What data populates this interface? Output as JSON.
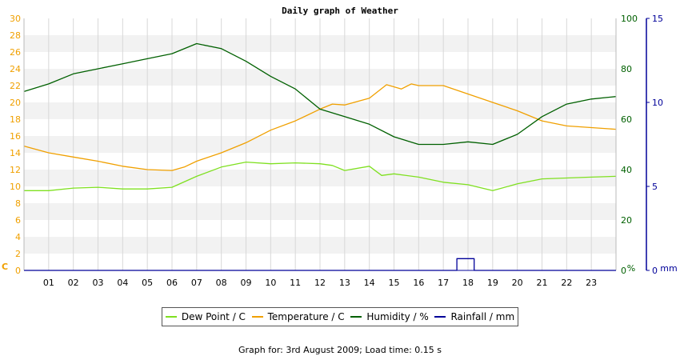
{
  "footer_text": "Graph for: 3rd August 2009; Load time: 0.15 s",
  "chart_data": {
    "type": "line",
    "title": "Daily graph of Weather",
    "x_ticks": [
      "01",
      "02",
      "03",
      "04",
      "05",
      "06",
      "07",
      "08",
      "09",
      "10",
      "11",
      "12",
      "13",
      "14",
      "15",
      "16",
      "17",
      "18",
      "19",
      "20",
      "21",
      "22",
      "23"
    ],
    "x_range_hours": [
      0,
      24
    ],
    "axes": {
      "left": {
        "unit_label": "C",
        "range": [
          0,
          30
        ],
        "ticks": [
          0,
          2,
          4,
          6,
          8,
          10,
          12,
          14,
          16,
          18,
          20,
          22,
          24,
          26,
          28,
          30
        ],
        "color": "#f0a000"
      },
      "right1": {
        "unit_label": "%",
        "range": [
          0,
          100
        ],
        "ticks": [
          0,
          20,
          40,
          60,
          80,
          100
        ],
        "color": "#006000"
      },
      "right2": {
        "unit_label": "mm",
        "range": [
          0,
          15
        ],
        "ticks": [
          0,
          5,
          10,
          15
        ],
        "color": "#000099"
      }
    },
    "grid": true,
    "legend_position": "bottom",
    "series": [
      {
        "name": "Dew Point / C",
        "axis": "left",
        "color": "#7fe020",
        "points": [
          [
            0,
            9.5
          ],
          [
            1,
            9.5
          ],
          [
            2,
            9.8
          ],
          [
            3,
            9.9
          ],
          [
            4,
            9.7
          ],
          [
            5,
            9.7
          ],
          [
            6,
            9.9
          ],
          [
            7,
            11.2
          ],
          [
            8,
            12.3
          ],
          [
            9,
            12.9
          ],
          [
            10,
            12.7
          ],
          [
            11,
            12.8
          ],
          [
            12,
            12.7
          ],
          [
            12.5,
            12.5
          ],
          [
            13,
            11.9
          ],
          [
            14,
            12.4
          ],
          [
            14.5,
            11.3
          ],
          [
            15,
            11.5
          ],
          [
            16,
            11.1
          ],
          [
            17,
            10.5
          ],
          [
            18,
            10.2
          ],
          [
            19,
            9.5
          ],
          [
            20,
            10.3
          ],
          [
            21,
            10.9
          ],
          [
            22,
            11.0
          ],
          [
            23,
            11.1
          ],
          [
            24,
            11.2
          ]
        ]
      },
      {
        "name": "Temperature / C",
        "axis": "left",
        "color": "#f0a000",
        "points": [
          [
            0,
            14.8
          ],
          [
            1,
            14.0
          ],
          [
            2,
            13.5
          ],
          [
            3,
            13.0
          ],
          [
            4,
            12.4
          ],
          [
            5,
            12.0
          ],
          [
            6,
            11.9
          ],
          [
            6.5,
            12.3
          ],
          [
            7,
            13.0
          ],
          [
            8,
            14.0
          ],
          [
            9,
            15.2
          ],
          [
            10,
            16.7
          ],
          [
            11,
            17.8
          ],
          [
            12,
            19.2
          ],
          [
            12.5,
            19.8
          ],
          [
            13,
            19.7
          ],
          [
            14,
            20.5
          ],
          [
            14.7,
            22.1
          ],
          [
            15.3,
            21.6
          ],
          [
            15.7,
            22.2
          ],
          [
            16,
            22.0
          ],
          [
            17,
            22.0
          ],
          [
            18,
            21.0
          ],
          [
            19,
            20.0
          ],
          [
            20,
            19.0
          ],
          [
            21,
            17.8
          ],
          [
            22,
            17.2
          ],
          [
            23,
            17.0
          ],
          [
            24,
            16.8
          ]
        ]
      },
      {
        "name": "Humidity / %",
        "axis": "right1",
        "color": "#006000",
        "points": [
          [
            0,
            71
          ],
          [
            1,
            74
          ],
          [
            2,
            78
          ],
          [
            3,
            80
          ],
          [
            4,
            82
          ],
          [
            5,
            84
          ],
          [
            6,
            86
          ],
          [
            7,
            90
          ],
          [
            8,
            88
          ],
          [
            9,
            83
          ],
          [
            10,
            77
          ],
          [
            11,
            72
          ],
          [
            12,
            64
          ],
          [
            13,
            61
          ],
          [
            14,
            58
          ],
          [
            15,
            53
          ],
          [
            16,
            50
          ],
          [
            17,
            50
          ],
          [
            18,
            51
          ],
          [
            19,
            50
          ],
          [
            20,
            54
          ],
          [
            21,
            61
          ],
          [
            22,
            66
          ],
          [
            23,
            68
          ],
          [
            24,
            69
          ]
        ]
      },
      {
        "name": "Rainfall / mm",
        "axis": "right2",
        "color": "#000099",
        "points": [
          [
            0,
            0
          ],
          [
            17.55,
            0
          ],
          [
            17.55,
            0.7
          ],
          [
            18.25,
            0.7
          ],
          [
            18.25,
            0
          ],
          [
            24,
            0
          ]
        ]
      }
    ]
  }
}
